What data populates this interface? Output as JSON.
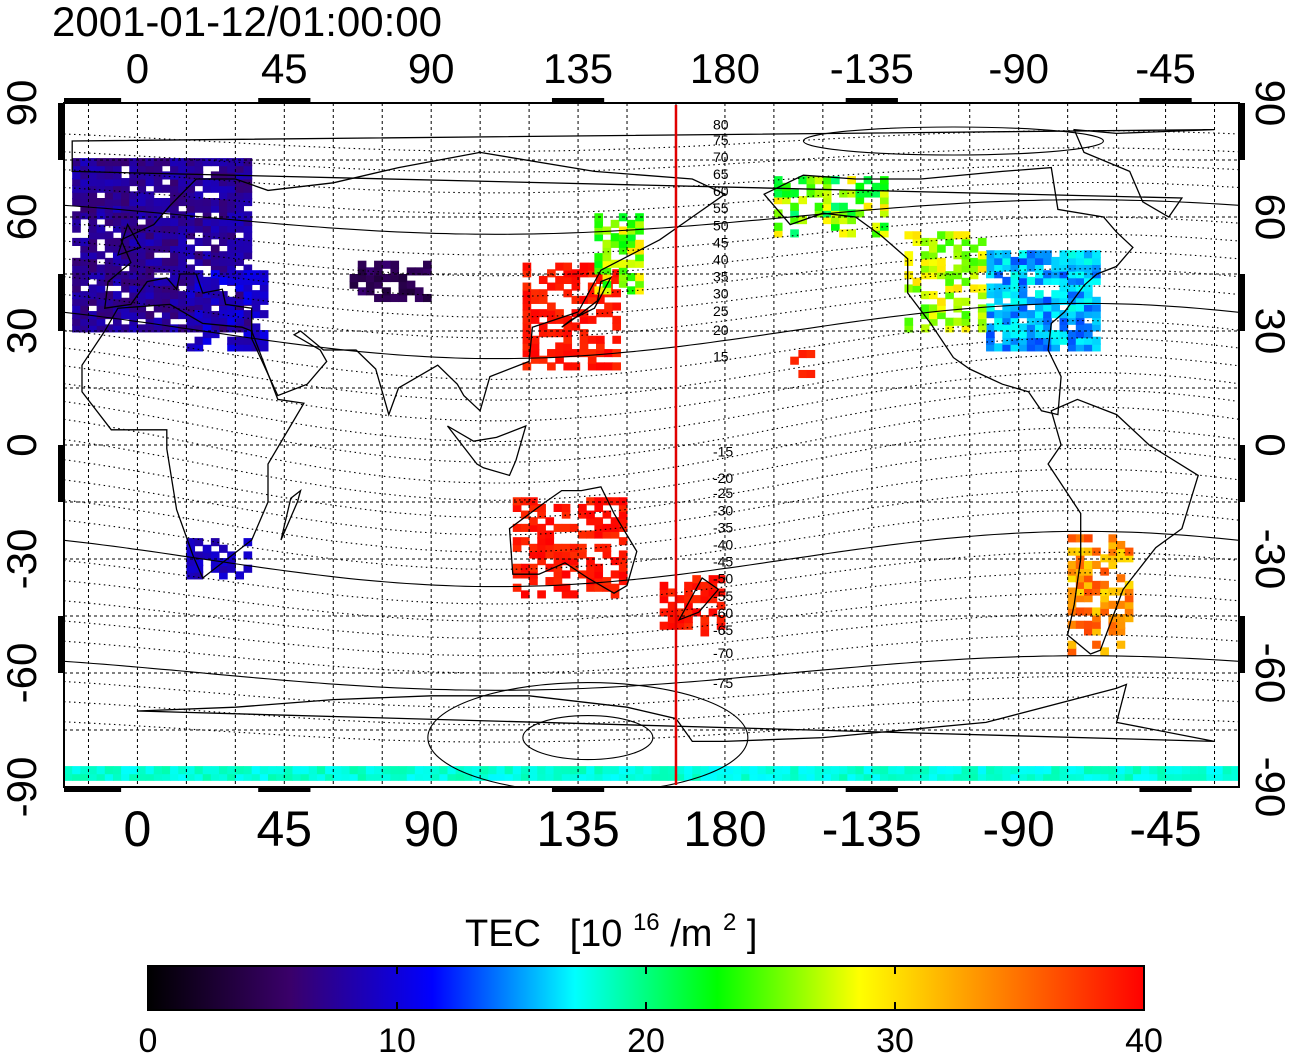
{
  "timestamp": "2001-01-12/01:00:00",
  "lon_ticks_top": [
    "0",
    "45",
    "90",
    "135",
    "180",
    "-135",
    "-90",
    "-45"
  ],
  "lon_ticks_bottom": [
    "0",
    "45",
    "90",
    "135",
    "180",
    "-135",
    "-90",
    "-45"
  ],
  "lat_ticks_left": [
    "90",
    "60",
    "30",
    "0",
    "-30",
    "-60",
    "-90"
  ],
  "lat_ticks_right": [
    "90",
    "60",
    "30",
    "0",
    "-30",
    "-60",
    "-90"
  ],
  "contour_labels": [
    "80",
    "75",
    "70",
    "65",
    "60",
    "55",
    "50",
    "45",
    "40",
    "35",
    "30",
    "25",
    "20",
    "15",
    "-15",
    "-20",
    "-25",
    "-30",
    "-35",
    "-40",
    "-45",
    "-50",
    "-55",
    "-60",
    "-65",
    "-70",
    "-75"
  ],
  "meridian_line": {
    "longitude": 165,
    "color": "#e00000"
  },
  "colorbar": {
    "title": "TEC",
    "unit_base": "[10",
    "unit_exp": "16",
    "unit_mid": "/m",
    "unit_exp2": "2",
    "unit_end": "]",
    "min": 0,
    "max": 40,
    "ticks": [
      "0",
      "10",
      "20",
      "30",
      "40"
    ],
    "colors": [
      "#000000",
      "#3a006a",
      "#0000ff",
      "#00ffff",
      "#00ff00",
      "#ffff00",
      "#ff8000",
      "#ff0000"
    ]
  },
  "tec_regions": [
    {
      "name": "europe",
      "lon": [
        -20,
        35
      ],
      "lat": [
        30,
        75
      ],
      "v": [
        6,
        9
      ]
    },
    {
      "name": "north-africa",
      "lon": [
        15,
        40
      ],
      "lat": [
        25,
        45
      ],
      "v": [
        8,
        11
      ]
    },
    {
      "name": "central-asia",
      "lon": [
        65,
        90
      ],
      "lat": [
        38,
        48
      ],
      "v": [
        3,
        6
      ]
    },
    {
      "name": "japan",
      "lon": [
        118,
        148
      ],
      "lat": [
        20,
        48
      ],
      "v": [
        38,
        40
      ]
    },
    {
      "name": "east-siberia",
      "lon": [
        140,
        155
      ],
      "lat": [
        40,
        60
      ],
      "v": [
        22,
        30
      ]
    },
    {
      "name": "australia",
      "lon": [
        115,
        150
      ],
      "lat": [
        -40,
        -15
      ],
      "v": [
        38,
        40
      ]
    },
    {
      "name": "new-zealand",
      "lon": [
        160,
        178
      ],
      "lat": [
        -50,
        -35
      ],
      "v": [
        38,
        40
      ]
    },
    {
      "name": "north-america-east",
      "lon": [
        -100,
        -65
      ],
      "lat": [
        25,
        50
      ],
      "v": [
        13,
        18
      ]
    },
    {
      "name": "north-america-west",
      "lon": [
        -125,
        -100
      ],
      "lat": [
        30,
        55
      ],
      "v": [
        24,
        30
      ]
    },
    {
      "name": "alaska",
      "lon": [
        -165,
        -130
      ],
      "lat": [
        55,
        70
      ],
      "v": [
        20,
        30
      ]
    },
    {
      "name": "hawaii",
      "lon": [
        -160,
        -153
      ],
      "lat": [
        18,
        24
      ],
      "v": [
        38,
        40
      ]
    },
    {
      "name": "south-africa",
      "lon": [
        15,
        35
      ],
      "lat": [
        -35,
        -25
      ],
      "v": [
        8,
        10
      ]
    },
    {
      "name": "south-america",
      "lon": [
        -75,
        -55
      ],
      "lat": [
        -55,
        -25
      ],
      "v": [
        30,
        37
      ]
    },
    {
      "name": "antarctic-belt",
      "lon": [
        -25,
        335
      ],
      "lat": [
        -88,
        -86
      ],
      "v": [
        17,
        19
      ]
    }
  ]
}
